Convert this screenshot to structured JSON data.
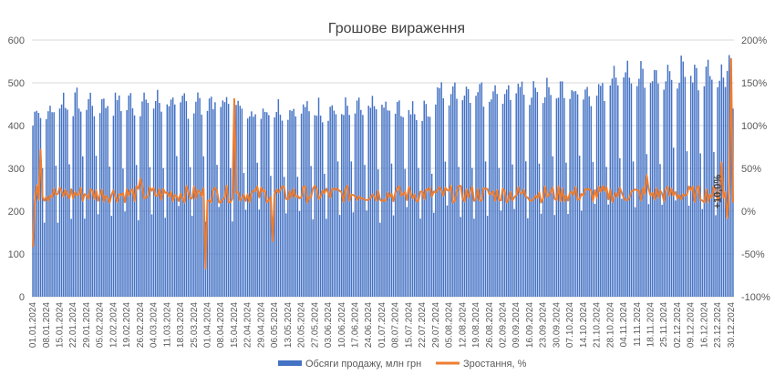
{
  "chart_data": {
    "type": "bar+line",
    "title": "Грошове вираження",
    "x_tick_labels": [
      "01.01.2024",
      "08.01.2024",
      "15.01.2024",
      "22.01.2024",
      "29.01.2024",
      "05.02.2024",
      "12.02.2024",
      "19.02.2024",
      "26.02.2024",
      "04.03.2024",
      "11.03.2024",
      "18.03.2024",
      "25.03.2024",
      "01.04.2024",
      "08.04.2024",
      "15.04.2024",
      "22.04.2024",
      "29.04.2024",
      "06.05.2024",
      "13.05.2024",
      "20.05.2024",
      "27.05.2024",
      "03.06.2024",
      "10.06.2024",
      "17.06.2024",
      "24.06.2024",
      "01.07.2024",
      "08.07.2024",
      "15.07.2024",
      "22.07.2024",
      "29.07.2024",
      "05.08.2024",
      "12.08.2024",
      "19.08.2024",
      "26.08.2024",
      "02.09.2024",
      "09.09.2024",
      "16.09.2024",
      "23.09.2024",
      "30.09.2024",
      "07.10.2024",
      "14.10.2024",
      "21.10.2024",
      "28.10.2024",
      "04.11.2024",
      "11.11.2024",
      "18.11.2024",
      "25.11.2024",
      "02.12.2024",
      "09.12.2024",
      "16.12.2024",
      "23.12.2024",
      "30.12.2024"
    ],
    "y_left": {
      "ticks": [
        "0",
        "100",
        "200",
        "300",
        "400",
        "500",
        "600"
      ],
      "range": [
        0,
        600
      ]
    },
    "y_right": {
      "ticks": [
        "-100%",
        "-50%",
        "0%",
        "50%",
        "100%",
        "150%",
        "200%"
      ],
      "range": [
        -100,
        200
      ]
    },
    "series": [
      {
        "name": "Обсяги продажу, млн грн",
        "kind": "bar",
        "color": "#4472c4",
        "weekly_pattern": {
          "weeks_1_2": [
            400,
            430,
            450,
            440,
            420,
            300,
            190
          ],
          "weeks_3_15": [
            440,
            460,
            470,
            455,
            435,
            310,
            195
          ],
          "weeks_16_30": [
            430,
            440,
            450,
            440,
            425,
            300,
            190
          ],
          "weeks_31_43": [
            460,
            480,
            495,
            485,
            460,
            320,
            200
          ],
          "weeks_44_53": [
            500,
            520,
            550,
            530,
            500,
            330,
            210
          ]
        },
        "notes": "Daily values with strong weekly cycle: weekday peaks ~420–560, weekend troughs ~180–210; overall level rising in Q4."
      },
      {
        "name": "Зростання, %",
        "kind": "line",
        "color": "#ed7d31",
        "axis": "right",
        "baseline_range": [
          10,
          30
        ],
        "spikes": [
          {
            "date": "01.01.2024",
            "value": -42
          },
          {
            "date": "03.01.2024",
            "value": 30
          },
          {
            "date": "05.01.2024",
            "value": 72
          },
          {
            "date": "26.02.2024",
            "value": 38
          },
          {
            "date": "31.03.2024",
            "value": -67
          },
          {
            "date": "15.04.2024",
            "value": 131
          },
          {
            "date": "05.05.2024",
            "value": -35
          },
          {
            "date": "16.11.2024",
            "value": 42
          },
          {
            "date": "25.12.2024",
            "value": 57
          },
          {
            "date": "28.12.2024",
            "value": -8
          },
          {
            "date": "30.12.2024",
            "value": 178
          },
          {
            "date": "31.12.2024",
            "value": 10
          }
        ]
      }
    ],
    "annotations": [
      {
        "text": "+10,0%",
        "near_date": "30.12.2024",
        "value": 10
      }
    ],
    "legend_position": "bottom-center",
    "grid": "horizontal"
  }
}
